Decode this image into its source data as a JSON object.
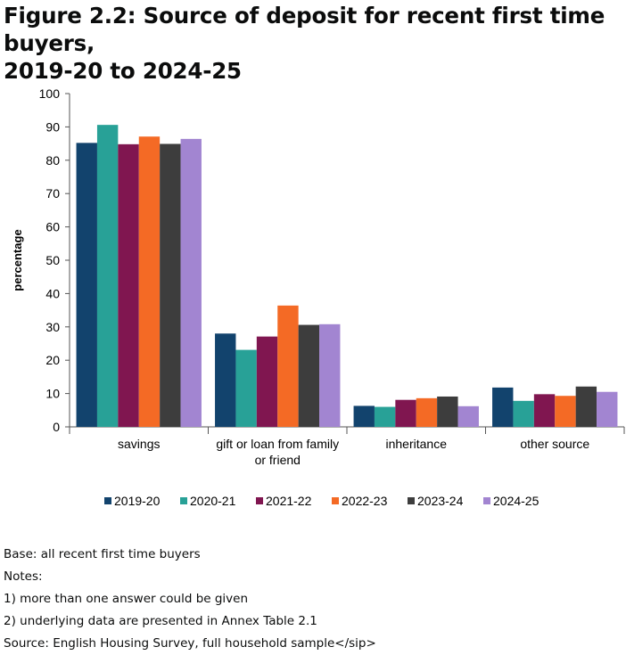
{
  "figure": {
    "title_line1": "Figure 2.2: Source of deposit for recent first time buyers,",
    "title_line2": "2019-20 to 2024-25"
  },
  "chart_data": {
    "type": "bar",
    "title": "Figure 2.2: Source of deposit for recent first time buyers, 2019-20 to 2024-25",
    "xlabel": "",
    "ylabel": "percentage",
    "ylim": [
      0,
      100
    ],
    "yticks": [
      0,
      10,
      20,
      30,
      40,
      50,
      60,
      70,
      80,
      90,
      100
    ],
    "grid": false,
    "legend_position": "bottom",
    "categories": [
      [
        "savings"
      ],
      [
        "gift or loan from family",
        "or friend"
      ],
      [
        "inheritance"
      ],
      [
        "other source"
      ]
    ],
    "series": [
      {
        "name": "2019-20",
        "color": "#12436d",
        "values": [
          85.2,
          28.0,
          6.3,
          11.8
        ]
      },
      {
        "name": "2020-21",
        "color": "#28a197",
        "values": [
          90.6,
          23.1,
          6.0,
          7.8
        ]
      },
      {
        "name": "2021-22",
        "color": "#801650",
        "values": [
          84.8,
          27.1,
          8.1,
          9.8
        ]
      },
      {
        "name": "2022-23",
        "color": "#f46a25",
        "values": [
          87.1,
          36.4,
          8.6,
          9.3
        ]
      },
      {
        "name": "2023-24",
        "color": "#3d3d3d",
        "values": [
          84.9,
          30.6,
          9.1,
          12.1
        ]
      },
      {
        "name": "2024-25",
        "color": "#a285d1",
        "values": [
          86.4,
          30.8,
          6.2,
          10.5
        ]
      }
    ]
  },
  "notes": {
    "base": "Base: all recent first time buyers",
    "notes_heading": "Notes:",
    "note1": "1) more than one answer could be given",
    "note2": "2) underlying data are presented in Annex Table 2.1",
    "source": "Source: English Housing Survey, full household sample</sip>"
  }
}
